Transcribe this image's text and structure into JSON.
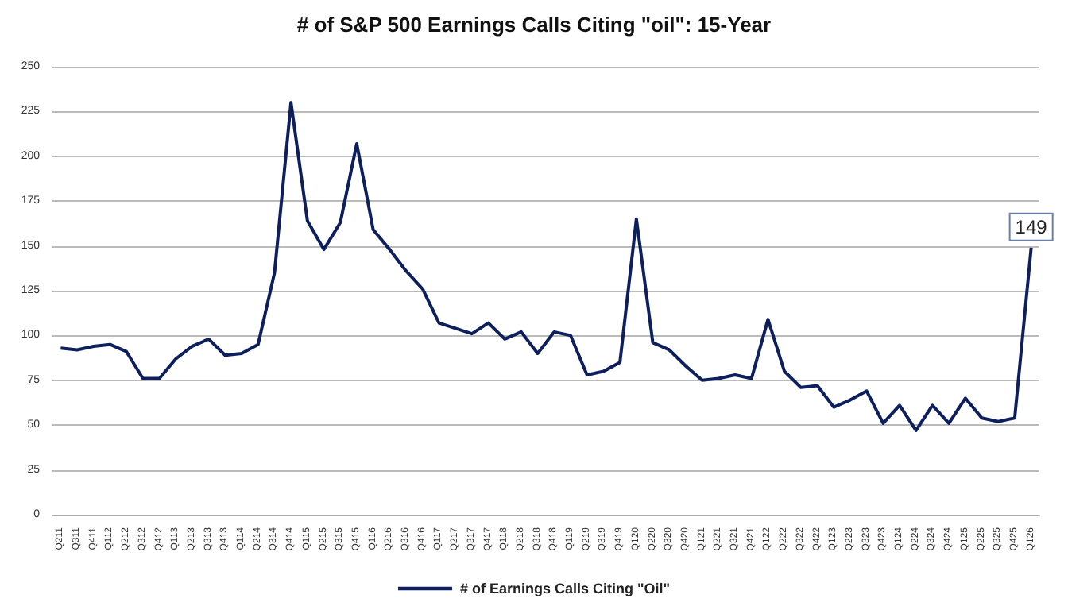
{
  "chart_data": {
    "type": "line",
    "title": "# of S&P 500 Earnings Calls Citing \"oil\": 15-Year",
    "categories": [
      "Q211",
      "Q311",
      "Q411",
      "Q112",
      "Q212",
      "Q312",
      "Q412",
      "Q113",
      "Q213",
      "Q313",
      "Q413",
      "Q114",
      "Q214",
      "Q314",
      "Q414",
      "Q115",
      "Q215",
      "Q315",
      "Q415",
      "Q116",
      "Q216",
      "Q316",
      "Q416",
      "Q117",
      "Q217",
      "Q317",
      "Q417",
      "Q118",
      "Q218",
      "Q318",
      "Q418",
      "Q119",
      "Q219",
      "Q319",
      "Q419",
      "Q120",
      "Q220",
      "Q320",
      "Q420",
      "Q121",
      "Q221",
      "Q321",
      "Q421",
      "Q122",
      "Q222",
      "Q322",
      "Q422",
      "Q123",
      "Q223",
      "Q323",
      "Q423",
      "Q124",
      "Q224",
      "Q324",
      "Q424",
      "Q125",
      "Q225",
      "Q325",
      "Q425",
      "Q126"
    ],
    "series": [
      {
        "name": "# of Earnings Calls Citing \"Oil\"",
        "color": "#0d1f5c",
        "values": [
          93,
          92,
          94,
          95,
          91,
          76,
          76,
          87,
          94,
          98,
          89,
          90,
          95,
          135,
          230,
          164,
          148,
          163,
          207,
          159,
          148,
          136,
          126,
          107,
          104,
          101,
          107,
          98,
          102,
          90,
          102,
          100,
          78,
          80,
          85,
          165,
          96,
          92,
          83,
          75,
          76,
          78,
          76,
          109,
          80,
          71,
          72,
          60,
          64,
          69,
          51,
          61,
          47,
          61,
          51,
          65,
          54,
          52,
          54,
          149
        ],
        "value_labels": [
          null,
          null,
          null,
          null,
          null,
          null,
          null,
          null,
          null,
          null,
          null,
          null,
          null,
          null,
          null,
          null,
          null,
          null,
          null,
          null,
          null,
          null,
          null,
          null,
          null,
          null,
          null,
          null,
          null,
          null,
          null,
          null,
          null,
          null,
          null,
          null,
          null,
          null,
          null,
          null,
          null,
          null,
          null,
          null,
          null,
          null,
          null,
          null,
          null,
          null,
          null,
          null,
          null,
          null,
          null,
          null,
          null,
          null,
          null,
          "149"
        ]
      }
    ],
    "ylim": [
      0,
      250
    ],
    "yticks": [
      0,
      25,
      50,
      75,
      100,
      125,
      150,
      175,
      200,
      225,
      250
    ],
    "grid": "y",
    "legend": "bottom",
    "marker": "none",
    "line_style": "solid"
  }
}
